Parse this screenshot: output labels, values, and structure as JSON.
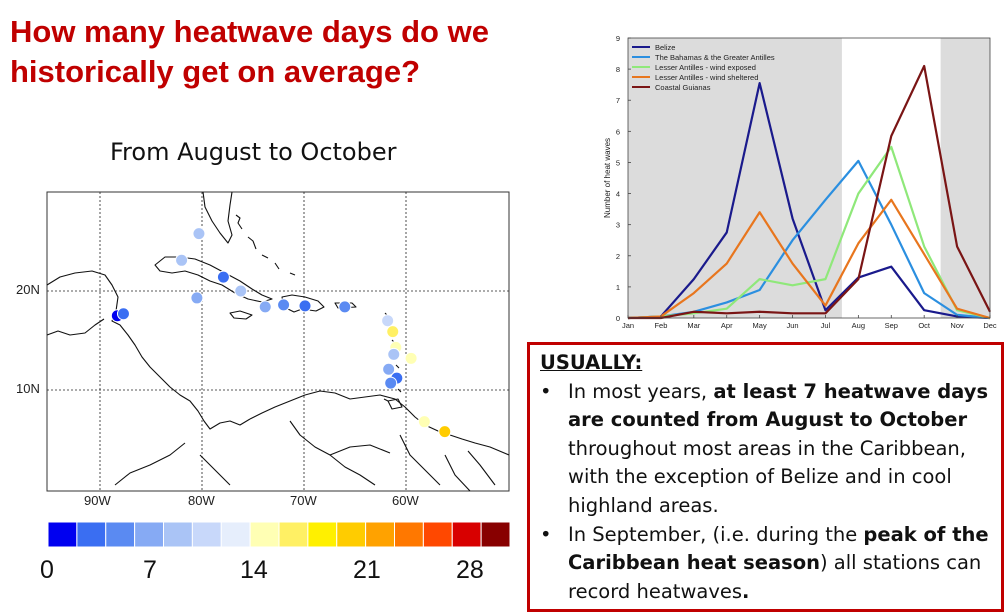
{
  "title": "How many heatwave days do we historically get on average?",
  "subtitle": "From  August  to  October",
  "map": {
    "lat_labels": [
      "20N",
      "10N"
    ],
    "lon_labels": [
      "90W",
      "80W",
      "70W",
      "60W"
    ],
    "stations": [
      {
        "lon": -88.3,
        "lat": 17.5,
        "days": 1
      },
      {
        "lon": -87.7,
        "lat": 17.7,
        "days": 3
      },
      {
        "lon": -80.3,
        "lat": 25.8,
        "days": 8
      },
      {
        "lon": -82.0,
        "lat": 23.1,
        "days": 8
      },
      {
        "lon": -80.5,
        "lat": 19.3,
        "days": 7
      },
      {
        "lon": -77.9,
        "lat": 21.4,
        "days": 3
      },
      {
        "lon": -76.2,
        "lat": 20.0,
        "days": 9
      },
      {
        "lon": -73.8,
        "lat": 18.4,
        "days": 6
      },
      {
        "lon": -72.0,
        "lat": 18.6,
        "days": 5
      },
      {
        "lon": -69.9,
        "lat": 18.5,
        "days": 3
      },
      {
        "lon": -66.0,
        "lat": 18.4,
        "days": 5
      },
      {
        "lon": -61.8,
        "lat": 17.0,
        "days": 10
      },
      {
        "lon": -61.3,
        "lat": 15.9,
        "days": 16
      },
      {
        "lon": -61.0,
        "lat": 14.3,
        "days": 15
      },
      {
        "lon": -61.2,
        "lat": 13.6,
        "days": 9
      },
      {
        "lon": -59.5,
        "lat": 13.2,
        "days": 15
      },
      {
        "lon": -61.7,
        "lat": 12.1,
        "days": 7
      },
      {
        "lon": -60.9,
        "lat": 11.2,
        "days": 3
      },
      {
        "lon": -61.5,
        "lat": 10.7,
        "days": 4
      },
      {
        "lon": -58.2,
        "lat": 6.8,
        "days": 15
      },
      {
        "lon": -56.2,
        "lat": 5.8,
        "days": 20
      }
    ]
  },
  "colorbar": {
    "colors": [
      "#0000f0",
      "#3a6ef2",
      "#5a8af2",
      "#86aaf4",
      "#aac4f6",
      "#c8d8fa",
      "#e6eefc",
      "#ffffb4",
      "#fff064",
      "#fff000",
      "#ffcc00",
      "#ffa200",
      "#ff7800",
      "#ff4800",
      "#d80000",
      "#880000"
    ],
    "labels": [
      "0",
      "7",
      "14",
      "21",
      "28"
    ]
  },
  "chart_data": {
    "type": "line",
    "ylabel": "Number of heat waves",
    "ylim": [
      0,
      9
    ],
    "yticks": [
      "0",
      "1",
      "2",
      "3",
      "4",
      "5",
      "6",
      "7",
      "8",
      "9"
    ],
    "categories": [
      "Jan",
      "Feb",
      "Mar",
      "Apr",
      "May",
      "Jun",
      "Jul",
      "Aug",
      "Sep",
      "Oct",
      "Nov",
      "Dec"
    ],
    "dry_season_shading": "Jan–Jul and Nov–Dec shaded grey",
    "legend_position": "top-left",
    "series": [
      {
        "name": "Belize",
        "color": "#1a1a8c",
        "values": [
          0,
          0.05,
          1.25,
          2.75,
          7.55,
          3.2,
          0.25,
          1.3,
          1.65,
          0.25,
          0.05,
          0
        ]
      },
      {
        "name": "The Bahamas & the Greater Antilles",
        "color": "#2b8fe0",
        "values": [
          0,
          0.05,
          0.2,
          0.5,
          0.9,
          2.5,
          3.8,
          5.05,
          3.0,
          0.8,
          0.1,
          0
        ]
      },
      {
        "name": "Lesser Antilles - wind exposed",
        "color": "#8fe87a",
        "values": [
          0,
          0.05,
          0.15,
          0.3,
          1.25,
          1.05,
          1.25,
          4.0,
          5.5,
          2.3,
          0.25,
          0
        ]
      },
      {
        "name": "Lesser Antilles - wind sheltered",
        "color": "#e8761e",
        "values": [
          0,
          0.05,
          0.8,
          1.75,
          3.4,
          1.75,
          0.4,
          2.4,
          3.8,
          2.05,
          0.3,
          0
        ]
      },
      {
        "name": "Coastal Guianas",
        "color": "#7a1515",
        "values": [
          0,
          0,
          0.2,
          0.15,
          0.2,
          0.15,
          0.15,
          1.25,
          5.85,
          8.1,
          2.3,
          0.2
        ]
      }
    ]
  },
  "note": {
    "heading": "USUALLY:",
    "bullet1": {
      "pre": "In most years, ",
      "bold": "at least 7 heatwave days are counted from August to October",
      "post": " throughout most areas in the Caribbean, with the exception of Belize and in cool highland areas."
    },
    "bullet2": {
      "pre": "In September, (i.e. during the ",
      "bold": "peak of the Caribbean heat season",
      "post": ") all stations can record heatwaves",
      "end": "."
    }
  }
}
